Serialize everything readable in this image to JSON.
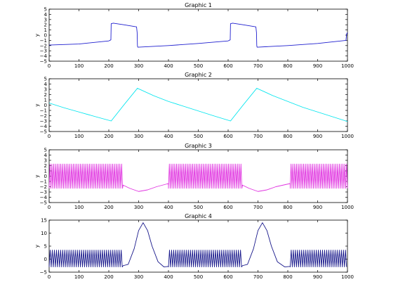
{
  "figure": {
    "background": "#ffffff"
  },
  "chart_data": [
    {
      "type": "line",
      "title": "Graphic 1",
      "xlabel": "",
      "ylabel": "y",
      "xlim": [
        0,
        1000
      ],
      "ylim": [
        -5,
        5
      ],
      "xticks": [
        0,
        100,
        200,
        300,
        400,
        500,
        600,
        700,
        800,
        900,
        1000
      ],
      "yticks": [
        -5,
        -4,
        -3,
        -2,
        -1,
        0,
        1,
        2,
        3,
        4,
        5
      ],
      "grid": false,
      "series": [
        {
          "color": "#1f1fcf",
          "x": [
            0,
            100,
            200,
            207,
            208,
            215,
            250,
            293,
            295,
            296,
            297,
            300,
            400,
            500,
            600,
            607,
            608,
            615,
            650,
            693,
            695,
            696,
            697,
            700,
            800,
            900,
            995,
            997,
            1000
          ],
          "y": [
            -1.9,
            -1.7,
            -1.1,
            -0.9,
            2.2,
            2.3,
            2.0,
            1.6,
            0.5,
            -2.0,
            -2.3,
            -2.3,
            -2.0,
            -1.6,
            -1.1,
            -0.9,
            2.2,
            2.3,
            2.0,
            1.6,
            0.5,
            -2.0,
            -2.3,
            -2.3,
            -2.0,
            -1.6,
            -1.0,
            0.2,
            0.5
          ]
        }
      ]
    },
    {
      "type": "line",
      "title": "Graphic 2",
      "xlabel": "",
      "ylabel": "y",
      "xlim": [
        0,
        1000
      ],
      "ylim": [
        -5,
        5
      ],
      "xticks": [
        0,
        100,
        200,
        300,
        400,
        500,
        600,
        700,
        800,
        900,
        1000
      ],
      "yticks": [
        -5,
        -4,
        -3,
        -2,
        -1,
        0,
        1,
        2,
        3,
        4,
        5
      ],
      "grid": false,
      "series": [
        {
          "color": "#00e5ee",
          "x": [
            0,
            50,
            100,
            150,
            208,
            250,
            296,
            350,
            400,
            450,
            500,
            550,
            608,
            650,
            696,
            750,
            800,
            850,
            900,
            950,
            1000
          ],
          "y": [
            0.4,
            -0.5,
            -1.3,
            -2.1,
            -3.0,
            0.0,
            3.2,
            1.8,
            0.7,
            -0.2,
            -1.1,
            -2.0,
            -3.0,
            0.0,
            3.2,
            1.8,
            0.7,
            -0.4,
            -1.3,
            -2.2,
            -3.1
          ]
        }
      ]
    },
    {
      "type": "line",
      "title": "Graphic 3",
      "xlabel": "",
      "ylabel": "y",
      "xlim": [
        0,
        1000
      ],
      "ylim": [
        -5,
        5
      ],
      "xticks": [
        0,
        100,
        200,
        300,
        400,
        500,
        600,
        700,
        800,
        900,
        1000
      ],
      "yticks": [
        -5,
        -4,
        -3,
        -2,
        -1,
        0,
        1,
        2,
        3,
        4,
        5
      ],
      "grid": false,
      "series": [
        {
          "color": "#e033e0",
          "segments": [
            {
              "kind": "oscillation",
              "x": [
                0,
                248
              ],
              "period": 6,
              "amplitude": [
                -2.3,
                2.3
              ]
            },
            {
              "kind": "curve",
              "x": [
                248,
                270,
                300,
                330,
                360,
                400
              ],
              "y": [
                -1.7,
                -2.3,
                -2.9,
                -2.6,
                -2.0,
                -1.4
              ]
            },
            {
              "kind": "oscillation",
              "x": [
                400,
                648
              ],
              "period": 6,
              "amplitude": [
                -2.3,
                2.3
              ]
            },
            {
              "kind": "curve",
              "x": [
                648,
                670,
                700,
                730,
                760,
                808
              ],
              "y": [
                -1.7,
                -2.3,
                -2.9,
                -2.6,
                -2.0,
                -1.4
              ]
            },
            {
              "kind": "oscillation",
              "x": [
                808,
                1000
              ],
              "period": 6,
              "amplitude": [
                -2.3,
                2.3
              ]
            }
          ]
        }
      ]
    },
    {
      "type": "line",
      "title": "Graphic 4",
      "xlabel": "",
      "ylabel": "y",
      "xlim": [
        0,
        1000
      ],
      "ylim": [
        -5,
        15
      ],
      "xticks": [
        0,
        100,
        200,
        300,
        400,
        500,
        600,
        700,
        800,
        900,
        1000
      ],
      "yticks": [
        -5,
        0,
        5,
        10,
        15
      ],
      "grid": false,
      "series": [
        {
          "color": "#16168a",
          "segments": [
            {
              "kind": "oscillation",
              "x": [
                0,
                248
              ],
              "period": 7,
              "amplitude": [
                -3.0,
                3.5
              ]
            },
            {
              "kind": "curve",
              "x": [
                248,
                265,
                285,
                300,
                315,
                330,
                345,
                365,
                385,
                400
              ],
              "y": [
                -2.5,
                -2.0,
                4.0,
                11.0,
                14.0,
                11.0,
                5.0,
                -1.0,
                -3.0,
                -2.8
              ]
            },
            {
              "kind": "oscillation",
              "x": [
                400,
                648
              ],
              "period": 7,
              "amplitude": [
                -3.0,
                3.5
              ]
            },
            {
              "kind": "curve",
              "x": [
                648,
                665,
                685,
                700,
                715,
                730,
                745,
                765,
                790,
                808
              ],
              "y": [
                -2.5,
                -2.0,
                4.0,
                11.0,
                14.0,
                11.0,
                5.0,
                -1.0,
                -3.0,
                -2.8
              ]
            },
            {
              "kind": "oscillation",
              "x": [
                808,
                1000
              ],
              "period": 7,
              "amplitude": [
                -3.0,
                3.5
              ]
            }
          ]
        }
      ]
    }
  ]
}
